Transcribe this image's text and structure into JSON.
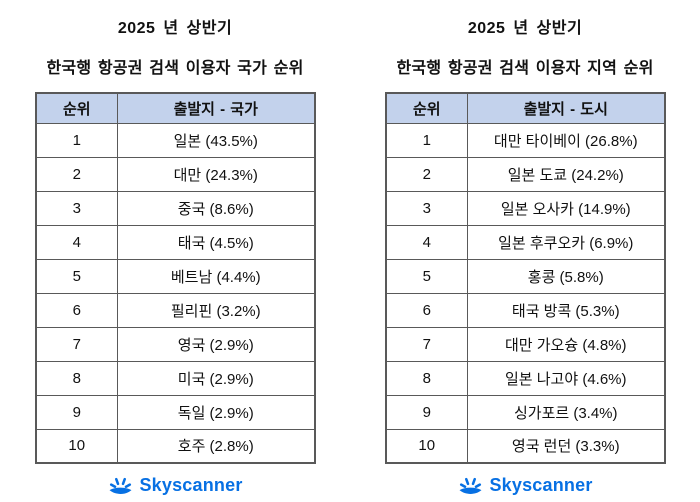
{
  "colors": {
    "header_bg": "#c3d2ec",
    "border": "#595959",
    "brand_blue": "#0770e3"
  },
  "footer": {
    "brand": "Skyscanner"
  },
  "tables": [
    {
      "title_line1": "2025 년 상반기",
      "title_line2": "한국행 항공권 검색 이용자 국가 순위",
      "columns": [
        "순위",
        "출발지 - 국가"
      ],
      "rows": [
        {
          "rank": "1",
          "label": "일본 (43.5%)"
        },
        {
          "rank": "2",
          "label": "대만 (24.3%)"
        },
        {
          "rank": "3",
          "label": "중국 (8.6%)"
        },
        {
          "rank": "4",
          "label": "태국 (4.5%)"
        },
        {
          "rank": "5",
          "label": "베트남 (4.4%)"
        },
        {
          "rank": "6",
          "label": "필리핀 (3.2%)"
        },
        {
          "rank": "7",
          "label": "영국 (2.9%)"
        },
        {
          "rank": "8",
          "label": "미국 (2.9%)"
        },
        {
          "rank": "9",
          "label": "독일 (2.9%)"
        },
        {
          "rank": "10",
          "label": "호주 (2.8%)"
        }
      ]
    },
    {
      "title_line1": "2025 년 상반기",
      "title_line2": "한국행 항공권 검색 이용자 지역 순위",
      "columns": [
        "순위",
        "출발지 - 도시"
      ],
      "rows": [
        {
          "rank": "1",
          "label": "대만 타이베이 (26.8%)"
        },
        {
          "rank": "2",
          "label": "일본 도쿄 (24.2%)"
        },
        {
          "rank": "3",
          "label": "일본 오사카 (14.9%)"
        },
        {
          "rank": "4",
          "label": "일본 후쿠오카 (6.9%)"
        },
        {
          "rank": "5",
          "label": "홍콩 (5.8%)"
        },
        {
          "rank": "6",
          "label": "태국 방콕 (5.3%)"
        },
        {
          "rank": "7",
          "label": "대만 가오슝 (4.8%)"
        },
        {
          "rank": "8",
          "label": "일본 나고야 (4.6%)"
        },
        {
          "rank": "9",
          "label": "싱가포르 (3.4%)"
        },
        {
          "rank": "10",
          "label": "영국 런던 (3.3%)"
        }
      ]
    }
  ],
  "chart_data": [
    {
      "type": "table",
      "title": "2025 년 상반기 한국행 항공권 검색 이용자 국가 순위",
      "columns": [
        "순위",
        "출발지 - 국가"
      ],
      "categories": [
        "일본",
        "대만",
        "중국",
        "태국",
        "베트남",
        "필리핀",
        "영국",
        "미국",
        "독일",
        "호주"
      ],
      "values": [
        43.5,
        24.3,
        8.6,
        4.5,
        4.4,
        3.2,
        2.9,
        2.9,
        2.9,
        2.8
      ],
      "value_unit": "%"
    },
    {
      "type": "table",
      "title": "2025 년 상반기 한국행 항공권 검색 이용자 지역 순위",
      "columns": [
        "순위",
        "출발지 - 도시"
      ],
      "categories": [
        "대만 타이베이",
        "일본 도쿄",
        "일본 오사카",
        "일본 후쿠오카",
        "홍콩",
        "태국 방콕",
        "대만 가오슝",
        "일본 나고야",
        "싱가포르",
        "영국 런던"
      ],
      "values": [
        26.8,
        24.2,
        14.9,
        6.9,
        5.8,
        5.3,
        4.8,
        4.6,
        3.4,
        3.3
      ],
      "value_unit": "%"
    }
  ]
}
